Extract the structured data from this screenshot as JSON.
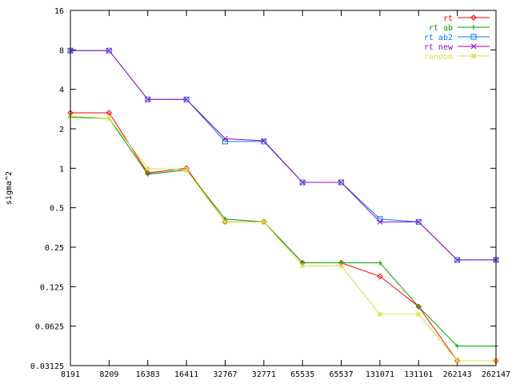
{
  "chart_data": {
    "type": "line",
    "title": "",
    "xlabel": "",
    "ylabel": "sigma^2",
    "y_scale": "log2",
    "ylim": [
      0.03125,
      16
    ],
    "y_ticks": [
      "0.03125",
      "0.0625",
      "0.125",
      "0.25",
      "0.5",
      "1",
      "2",
      "4",
      "8",
      "16"
    ],
    "y_tick_values": [
      0.03125,
      0.0625,
      0.125,
      0.25,
      0.5,
      1,
      2,
      4,
      8,
      16
    ],
    "categories": [
      "8191",
      "8209",
      "16383",
      "16411",
      "32767",
      "32771",
      "65535",
      "65537",
      "131071",
      "131101",
      "262143",
      "262147"
    ],
    "grid": false,
    "legend_position": "top-right",
    "series": [
      {
        "name": "rt",
        "color": "#ff0000",
        "marker": "diamond",
        "values": [
          2.65,
          2.65,
          0.92,
          1.0,
          0.39,
          0.39,
          0.19,
          0.19,
          0.15,
          0.088,
          0.034,
          0.034
        ]
      },
      {
        "name": "rt ab",
        "color": "#00a000",
        "marker": "plus",
        "values": [
          2.45,
          2.4,
          0.9,
          0.97,
          0.41,
          0.39,
          0.19,
          0.19,
          0.19,
          0.088,
          0.044,
          0.044
        ]
      },
      {
        "name": "rt ab2",
        "color": "#0080ff",
        "marker": "square",
        "values": [
          7.9,
          7.9,
          3.35,
          3.35,
          1.6,
          1.6,
          0.78,
          0.78,
          0.41,
          0.39,
          0.2,
          0.2
        ]
      },
      {
        "name": "rt new",
        "color": "#a000c0",
        "marker": "cross",
        "values": [
          7.9,
          7.9,
          3.35,
          3.35,
          1.68,
          1.62,
          0.78,
          0.78,
          0.39,
          0.39,
          0.2,
          0.2
        ]
      },
      {
        "name": "random",
        "color": "#d8e040",
        "marker": "star",
        "values": [
          2.5,
          2.4,
          1.0,
          0.97,
          0.39,
          0.39,
          0.18,
          0.18,
          0.077,
          0.077,
          0.034,
          0.034
        ]
      }
    ]
  }
}
